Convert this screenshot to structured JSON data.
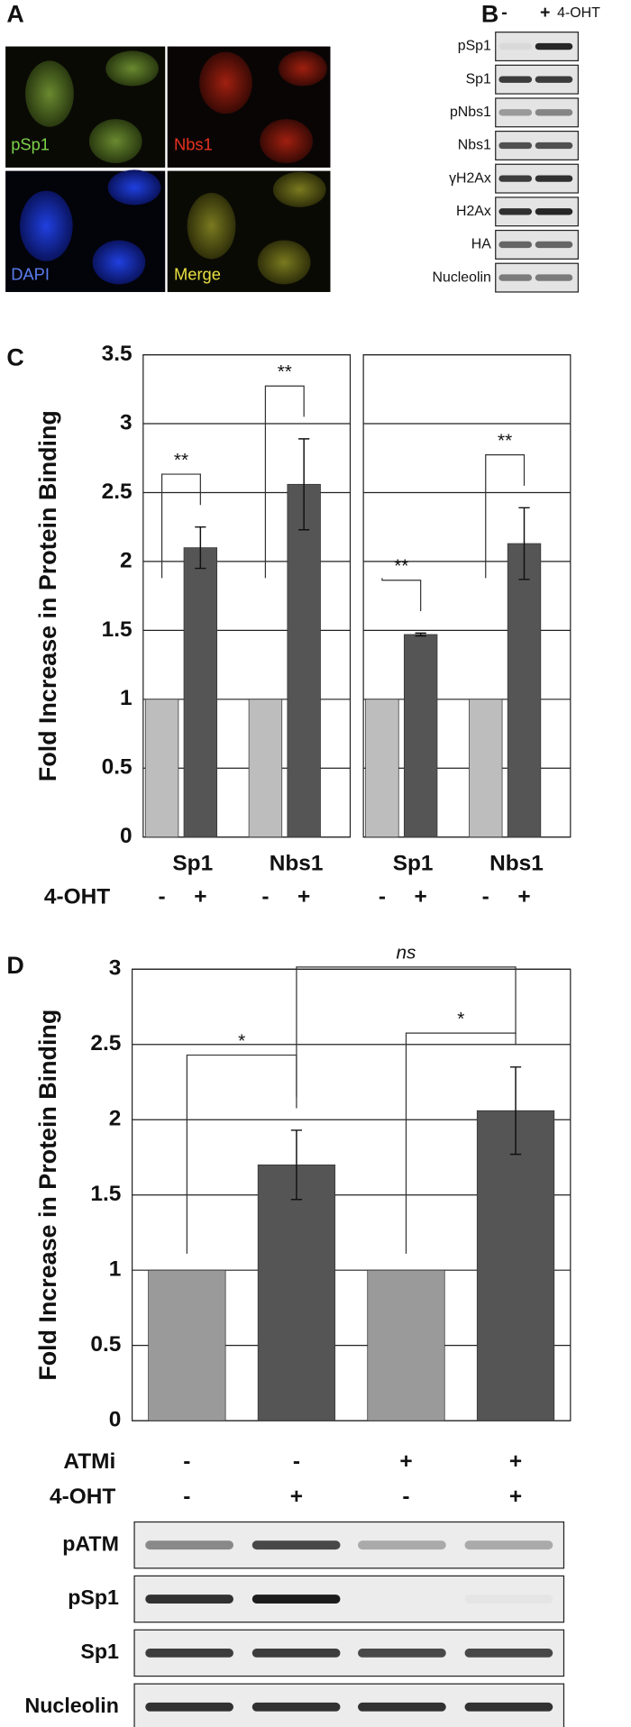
{
  "panel_labels": [
    "A",
    "B",
    "C",
    "D"
  ],
  "microscopy": {
    "labels": [
      "pSp1",
      "Nbs1",
      "DAPI",
      "Merge"
    ]
  },
  "blot_b": {
    "columns": [
      "-",
      "+"
    ],
    "treatment": "4-OHT",
    "rows": [
      "pSp1",
      "Sp1",
      "pNbs1",
      "Nbs1",
      "γH2Ax",
      "H2Ax",
      "HA",
      "Nucleolin"
    ]
  },
  "chart_data": [
    {
      "type": "grouped_bar",
      "y_label": "Fold Increase in Protein Binding",
      "condition_label": "4-OHT",
      "categories": [
        "Sp1",
        "Nbs1"
      ],
      "series": [
        {
          "name": "-",
          "color": "#bdbdbd",
          "values": [
            1,
            1
          ],
          "errors": [
            null,
            null
          ]
        },
        {
          "name": "+",
          "color": "#555555",
          "values": [
            2.1,
            2.56
          ],
          "errors": [
            0.15,
            0.33
          ]
        }
      ],
      "significance": [
        "**",
        "**"
      ],
      "ylim": [
        0,
        3.5
      ],
      "yticks": [
        0,
        0.5,
        1,
        1.5,
        2,
        2.5,
        3,
        3.5
      ],
      "grid": true
    },
    {
      "type": "grouped_bar",
      "categories": [
        "Sp1",
        "Nbs1"
      ],
      "series": [
        {
          "name": "-",
          "color": "#bdbdbd",
          "values": [
            1,
            1
          ],
          "errors": [
            null,
            null
          ]
        },
        {
          "name": "+",
          "color": "#555555",
          "values": [
            1.47,
            2.13
          ],
          "errors": [
            0.01,
            0.26
          ]
        }
      ],
      "significance": [
        "**",
        "**"
      ],
      "ylim": [
        0,
        3.5
      ],
      "yticks": [
        0,
        0.5,
        1,
        1.5,
        2,
        2.5,
        3,
        3.5
      ],
      "grid": true,
      "show_tick_labels": false
    },
    {
      "type": "bar",
      "y_label": "Fold Increase in Protein Binding",
      "values": [
        1,
        1.7,
        1,
        2.06
      ],
      "errors": [
        null,
        0.23,
        null,
        0.29
      ],
      "colors": [
        "#9a9a9a",
        "#555555",
        "#9a9a9a",
        "#555555"
      ],
      "conditions": [
        {
          "name": "ATMi",
          "labels": [
            "-",
            "-",
            "+",
            "+"
          ]
        },
        {
          "name": "4-OHT",
          "labels": [
            "-",
            "+",
            "-",
            "+"
          ]
        }
      ],
      "annotations": [
        "*",
        "*",
        "ns"
      ],
      "ylim": [
        0,
        3
      ],
      "yticks": [
        0,
        0.5,
        1,
        1.5,
        2,
        2.5,
        3
      ],
      "grid": true
    }
  ],
  "blot_d": {
    "rows": [
      "pATM",
      "pSp1",
      "Sp1",
      "Nucleolin"
    ]
  }
}
